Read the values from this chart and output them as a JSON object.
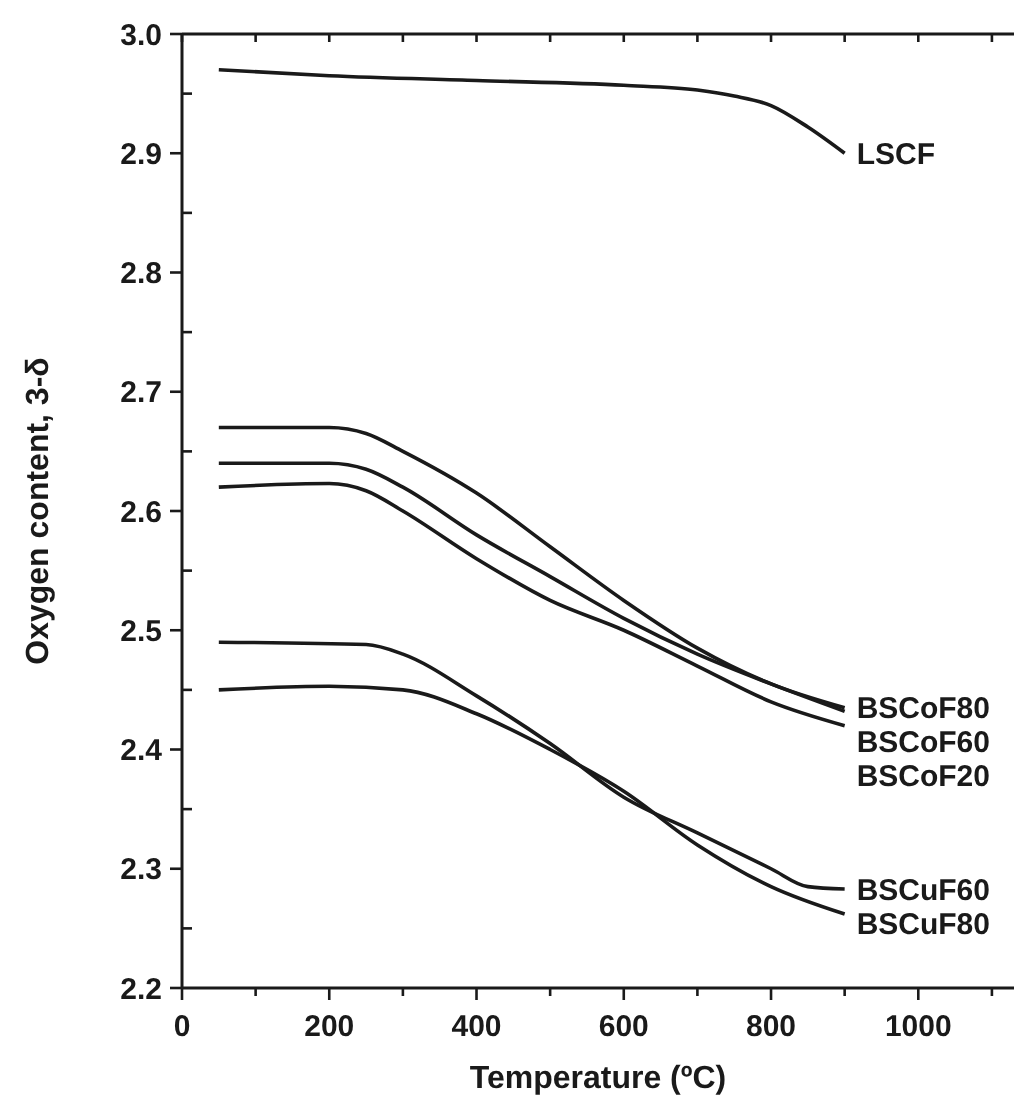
{
  "chart_data": {
    "type": "line",
    "xlabel": "Temperature (ºC)",
    "ylabel": "Oxygen content, 3-δ",
    "xlim": [
      0,
      1130
    ],
    "xticks": [
      0,
      {
        "value": 100,
        "label": null
      },
      200,
      {
        "value": 300,
        "label": null
      },
      400,
      {
        "value": 500,
        "label": null
      },
      600,
      {
        "value": 700,
        "label": null
      },
      800,
      {
        "value": 900,
        "label": null
      },
      1000,
      {
        "value": 1100,
        "label": null
      }
    ],
    "ylim": [
      2.2,
      3.0
    ],
    "yticks": [
      2.2,
      {
        "value": 2.25,
        "label": null
      },
      2.3,
      {
        "value": 2.35,
        "label": null
      },
      2.4,
      {
        "value": 2.45,
        "label": null
      },
      2.5,
      {
        "value": 2.55,
        "label": null
      },
      2.6,
      {
        "value": 2.65,
        "label": null
      },
      2.7,
      {
        "value": 2.75,
        "label": null
      },
      2.8,
      {
        "value": 2.85,
        "label": null
      },
      2.9,
      {
        "value": 2.95,
        "label": null
      },
      {
        "value": 3.0,
        "label": "3.0"
      }
    ],
    "grid": false,
    "marker": "none",
    "line_style": "solid",
    "series": [
      {
        "name": "LSCF",
        "color": "#1a1a1a",
        "x": [
          50,
          200,
          400,
          600,
          700,
          750,
          800,
          850,
          900
        ],
        "values": [
          2.97,
          2.965,
          2.961,
          2.957,
          2.953,
          2.948,
          2.94,
          2.922,
          2.9
        ]
      },
      {
        "name": "BSCoF80",
        "color": "#1a1a1a",
        "x": [
          50,
          200,
          250,
          300,
          400,
          500,
          600,
          700,
          800,
          900
        ],
        "values": [
          2.67,
          2.67,
          2.665,
          2.65,
          2.615,
          2.57,
          2.525,
          2.485,
          2.455,
          2.435
        ]
      },
      {
        "name": "BSCoF60",
        "color": "#1a1a1a",
        "x": [
          50,
          200,
          250,
          300,
          400,
          500,
          600,
          700,
          800,
          900
        ],
        "values": [
          2.64,
          2.64,
          2.635,
          2.62,
          2.58,
          2.545,
          2.51,
          2.48,
          2.455,
          2.432
        ]
      },
      {
        "name": "BSCoF20",
        "color": "#1a1a1a",
        "x": [
          50,
          200,
          250,
          300,
          400,
          500,
          600,
          700,
          800,
          900
        ],
        "values": [
          2.62,
          2.623,
          2.617,
          2.6,
          2.56,
          2.525,
          2.5,
          2.47,
          2.44,
          2.42
        ]
      },
      {
        "name": "BSCuF60",
        "color": "#1a1a1a",
        "x": [
          50,
          250,
          300,
          400,
          500,
          600,
          700,
          800,
          850,
          900
        ],
        "values": [
          2.49,
          2.488,
          2.48,
          2.445,
          2.405,
          2.36,
          2.33,
          2.3,
          2.285,
          2.283
        ]
      },
      {
        "name": "BSCuF80",
        "color": "#1a1a1a",
        "x": [
          50,
          200,
          300,
          400,
          500,
          600,
          700,
          800,
          900
        ],
        "values": [
          2.45,
          2.453,
          2.45,
          2.43,
          2.4,
          2.365,
          2.32,
          2.285,
          2.262
        ]
      }
    ]
  }
}
